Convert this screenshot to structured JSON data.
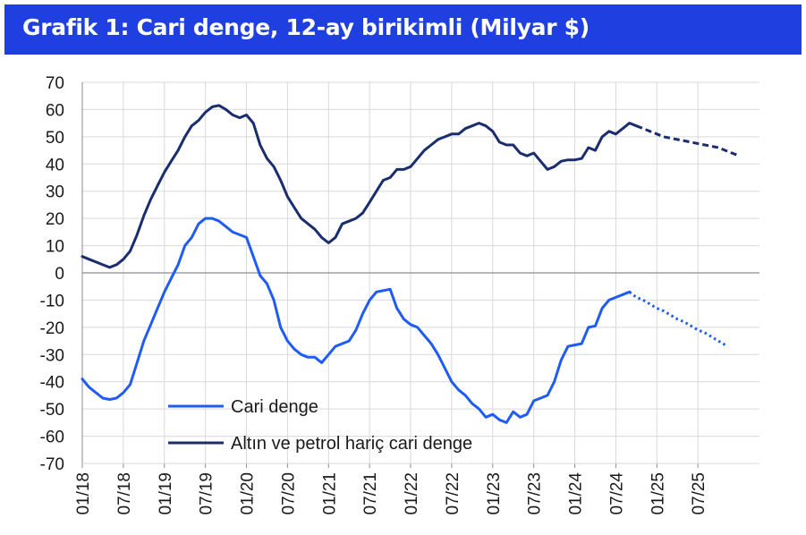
{
  "title": "Grafik 1: Cari denge, 12-ay birikimli (Milyar $)",
  "chart_data": {
    "type": "line",
    "title": "Grafik 1: Cari denge, 12-ay birikimli (Milyar $)",
    "ylim": [
      -70,
      70
    ],
    "y_ticks": [
      70,
      60,
      50,
      40,
      30,
      20,
      10,
      0,
      -10,
      -20,
      -30,
      -40,
      -50,
      -60,
      -70
    ],
    "x_tick_labels": [
      "01/18",
      "07/18",
      "01/19",
      "07/19",
      "01/20",
      "07/20",
      "01/21",
      "07/21",
      "01/22",
      "07/22",
      "01/23",
      "07/23",
      "01/24",
      "07/24",
      "01/25",
      "07/25"
    ],
    "x_tick_month_index": [
      0,
      6,
      12,
      18,
      24,
      30,
      36,
      42,
      48,
      54,
      60,
      66,
      72,
      78,
      84,
      90
    ],
    "x_range_months": [
      0,
      99
    ],
    "grid": "vertical and horizontal",
    "legend_position": "bottom-left",
    "series": [
      {
        "name": "Cari denge",
        "color": "#1f5cf5",
        "style": "solid",
        "values": [
          -39,
          -42,
          -44,
          -46,
          -46.5,
          -46,
          -44,
          -41,
          -33,
          -25,
          -19,
          -13,
          -7,
          -2,
          3,
          10,
          13,
          18,
          20,
          20,
          19,
          17,
          15,
          14,
          13,
          6,
          -1,
          -4,
          -10,
          -20,
          -25,
          -28,
          -30,
          -31,
          -31,
          -33,
          -30,
          -27,
          -26,
          -25,
          -21,
          -15,
          -10,
          -7,
          -6.5,
          -6,
          -13,
          -17,
          -19,
          -20,
          -23,
          -26,
          -30,
          -35,
          -40,
          -43,
          -45,
          -48,
          -50,
          -53,
          -52,
          -54,
          -55,
          -51,
          -53,
          -52,
          -47,
          -46,
          -45,
          -40,
          -32,
          -27,
          -26.5,
          -26,
          -20,
          -19.5,
          -13,
          -10,
          -9,
          -8,
          -7
        ],
        "projection": {
          "color": "#1f5cf5",
          "style": "dotted",
          "values": [
            -7,
            -9,
            -10,
            -11.5,
            -13,
            -14,
            -15.5,
            -17,
            -18,
            -19.5,
            -21,
            -22,
            -23.5,
            -25,
            -26.5
          ]
        }
      },
      {
        "name": "Altın ve petrol hariç cari denge",
        "color": "#1a2d6e",
        "style": "solid",
        "values": [
          6,
          5,
          4,
          3,
          2,
          3,
          5,
          8,
          14,
          21,
          27,
          32,
          37,
          41,
          45,
          50,
          54,
          56,
          59,
          61,
          61.5,
          60,
          58,
          57,
          58,
          55,
          47,
          42,
          39,
          34,
          28,
          24,
          20,
          18,
          16,
          13,
          11,
          13,
          18,
          19,
          20,
          22,
          26,
          30,
          34,
          35,
          38,
          38,
          39,
          42,
          45,
          47,
          49,
          50,
          51,
          51,
          53,
          54,
          55,
          54,
          52,
          48,
          47,
          47,
          44,
          43,
          44,
          41,
          38,
          39,
          41,
          41.5,
          41.5,
          42,
          46,
          45,
          50,
          52,
          51,
          53,
          55,
          54
        ],
        "projection": {
          "color": "#1a2d6e",
          "style": "dashed",
          "values": [
            54,
            53,
            52,
            51,
            50,
            49.5,
            49,
            48.5,
            48,
            47.5,
            47,
            46.5,
            46,
            45,
            44,
            43
          ]
        }
      }
    ]
  }
}
